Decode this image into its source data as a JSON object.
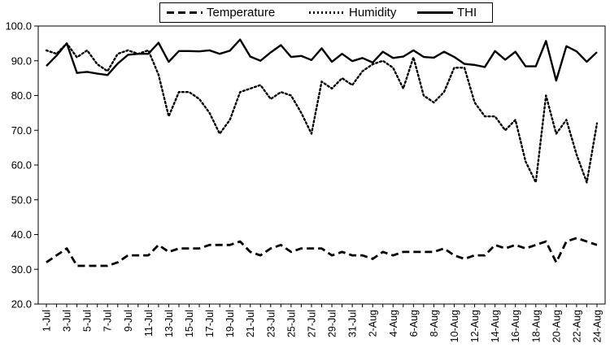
{
  "chart_data": {
    "type": "line",
    "title": "",
    "xlabel": "",
    "ylabel": "",
    "ylim": [
      20,
      100
    ],
    "yticks": [
      "20.0",
      "30.0",
      "40.0",
      "50.0",
      "60.0",
      "70.0",
      "80.0",
      "90.0",
      "100.0"
    ],
    "grid": false,
    "legend_position": "top-center",
    "x_tick_labels": [
      "1-Jul",
      "3-Jul",
      "5-Jul",
      "7-Jul",
      "9-Jul",
      "11-Jul",
      "13-Jul",
      "15-Jul",
      "17-Jul",
      "19-Jul",
      "21-Jul",
      "23-Jul",
      "25-Jul",
      "27-Jul",
      "29-Jul",
      "31-Jul",
      "2-Aug",
      "4-Aug",
      "6-Aug",
      "8-Aug",
      "10-Aug",
      "12-Aug",
      "14-Aug",
      "16-Aug",
      "18-Aug",
      "20-Aug",
      "22-Aug",
      "24-Aug"
    ],
    "x": [
      "1-Jul",
      "2-Jul",
      "3-Jul",
      "4-Jul",
      "5-Jul",
      "6-Jul",
      "7-Jul",
      "8-Jul",
      "9-Jul",
      "10-Jul",
      "11-Jul",
      "12-Jul",
      "13-Jul",
      "14-Jul",
      "15-Jul",
      "16-Jul",
      "17-Jul",
      "18-Jul",
      "19-Jul",
      "20-Jul",
      "21-Jul",
      "22-Jul",
      "23-Jul",
      "24-Jul",
      "25-Jul",
      "26-Jul",
      "27-Jul",
      "28-Jul",
      "29-Jul",
      "30-Jul",
      "31-Jul",
      "1-Aug",
      "2-Aug",
      "3-Aug",
      "4-Aug",
      "5-Aug",
      "6-Aug",
      "7-Aug",
      "8-Aug",
      "9-Aug",
      "10-Aug",
      "11-Aug",
      "12-Aug",
      "13-Aug",
      "14-Aug",
      "15-Aug",
      "16-Aug",
      "17-Aug",
      "18-Aug",
      "19-Aug",
      "20-Aug",
      "21-Aug",
      "22-Aug",
      "23-Aug",
      "24-Aug"
    ],
    "series": [
      {
        "name": "Temperature",
        "style": "dashed",
        "color": "#000000",
        "values": [
          32,
          34,
          36,
          31,
          31,
          31,
          31,
          32,
          34,
          34,
          34,
          37,
          35,
          36,
          36,
          36,
          37,
          37,
          37,
          38,
          35,
          34,
          36,
          37,
          35,
          36,
          36,
          36,
          34,
          35,
          34,
          34,
          33,
          35,
          34,
          35,
          35,
          35,
          35,
          36,
          34,
          33,
          34,
          34,
          37,
          36,
          37,
          36,
          37,
          38,
          32,
          38,
          39,
          38,
          37
        ]
      },
      {
        "name": "Humidity",
        "style": "dotted",
        "color": "#000000",
        "values": [
          93,
          92,
          95,
          91,
          93,
          89,
          87,
          92,
          93,
          92,
          93,
          86,
          74,
          81,
          81,
          79,
          75,
          69,
          73,
          81,
          82,
          83,
          79,
          81,
          80,
          75,
          69,
          84,
          82,
          85,
          83,
          87,
          89,
          90,
          88,
          82,
          91,
          80,
          78,
          81,
          88,
          88,
          78,
          74,
          74,
          70,
          73,
          61,
          55,
          80,
          69,
          73,
          63,
          55,
          72
        ]
      },
      {
        "name": "THI",
        "style": "solid",
        "color": "#000000",
        "values": [
          88.5,
          91.5,
          95,
          86.5,
          86.8,
          86.3,
          85.9,
          89.2,
          91.7,
          92,
          92,
          95.2,
          89.7,
          92.8,
          92.8,
          92.7,
          93,
          92,
          92.9,
          96.1,
          91.2,
          90,
          92.4,
          94.5,
          91.1,
          91.4,
          90.2,
          93.6,
          89.7,
          92,
          89.9,
          90.8,
          89.5,
          92.6,
          90.8,
          91.2,
          93,
          91.1,
          90.9,
          92.6,
          91.1,
          89.1,
          88.8,
          88.2,
          92.8,
          90.3,
          92.6,
          88.4,
          88.4,
          95.7,
          84.3,
          94.2,
          92.7,
          89.7,
          92.5
        ]
      }
    ]
  }
}
